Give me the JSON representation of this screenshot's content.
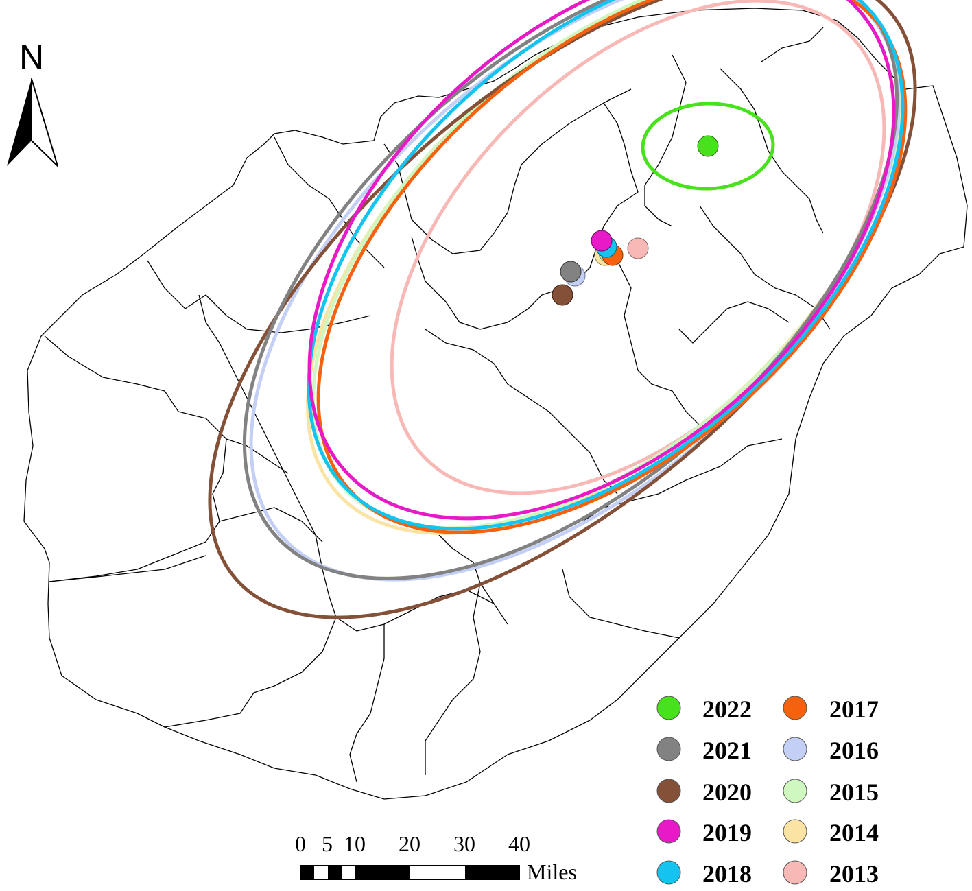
{
  "north_arrow": {
    "letter": "N"
  },
  "scale_bar": {
    "ticks": [
      "0",
      "5",
      "10",
      "20",
      "30",
      "40"
    ],
    "unit": "Miles"
  },
  "ellipses": [
    {
      "year": "2013",
      "color": "#f7b8b6"
    },
    {
      "year": "2014",
      "color": "#fbe3a4"
    },
    {
      "year": "2015",
      "color": "#cff7c0"
    },
    {
      "year": "2016",
      "color": "#c3cff4"
    },
    {
      "year": "2020",
      "color": "#845038"
    },
    {
      "year": "2021",
      "color": "#828282"
    },
    {
      "year": "2017",
      "color": "#f5620f"
    },
    {
      "year": "2018",
      "color": "#14c3f0"
    },
    {
      "year": "2019",
      "color": "#e819c7"
    },
    {
      "year": "2022",
      "color": "#47e21c"
    }
  ],
  "legend": [
    {
      "year": "2022",
      "color": "#47e21c"
    },
    {
      "year": "2021",
      "color": "#828282"
    },
    {
      "year": "2020",
      "color": "#845038"
    },
    {
      "year": "2019",
      "color": "#e819c7"
    },
    {
      "year": "2018",
      "color": "#14c3f0"
    },
    {
      "year": "2017",
      "color": "#f5620f"
    },
    {
      "year": "2016",
      "color": "#c3cff4"
    },
    {
      "year": "2015",
      "color": "#cff7c0"
    },
    {
      "year": "2014",
      "color": "#fbe3a4"
    },
    {
      "year": "2013",
      "color": "#f7b8b6"
    }
  ]
}
